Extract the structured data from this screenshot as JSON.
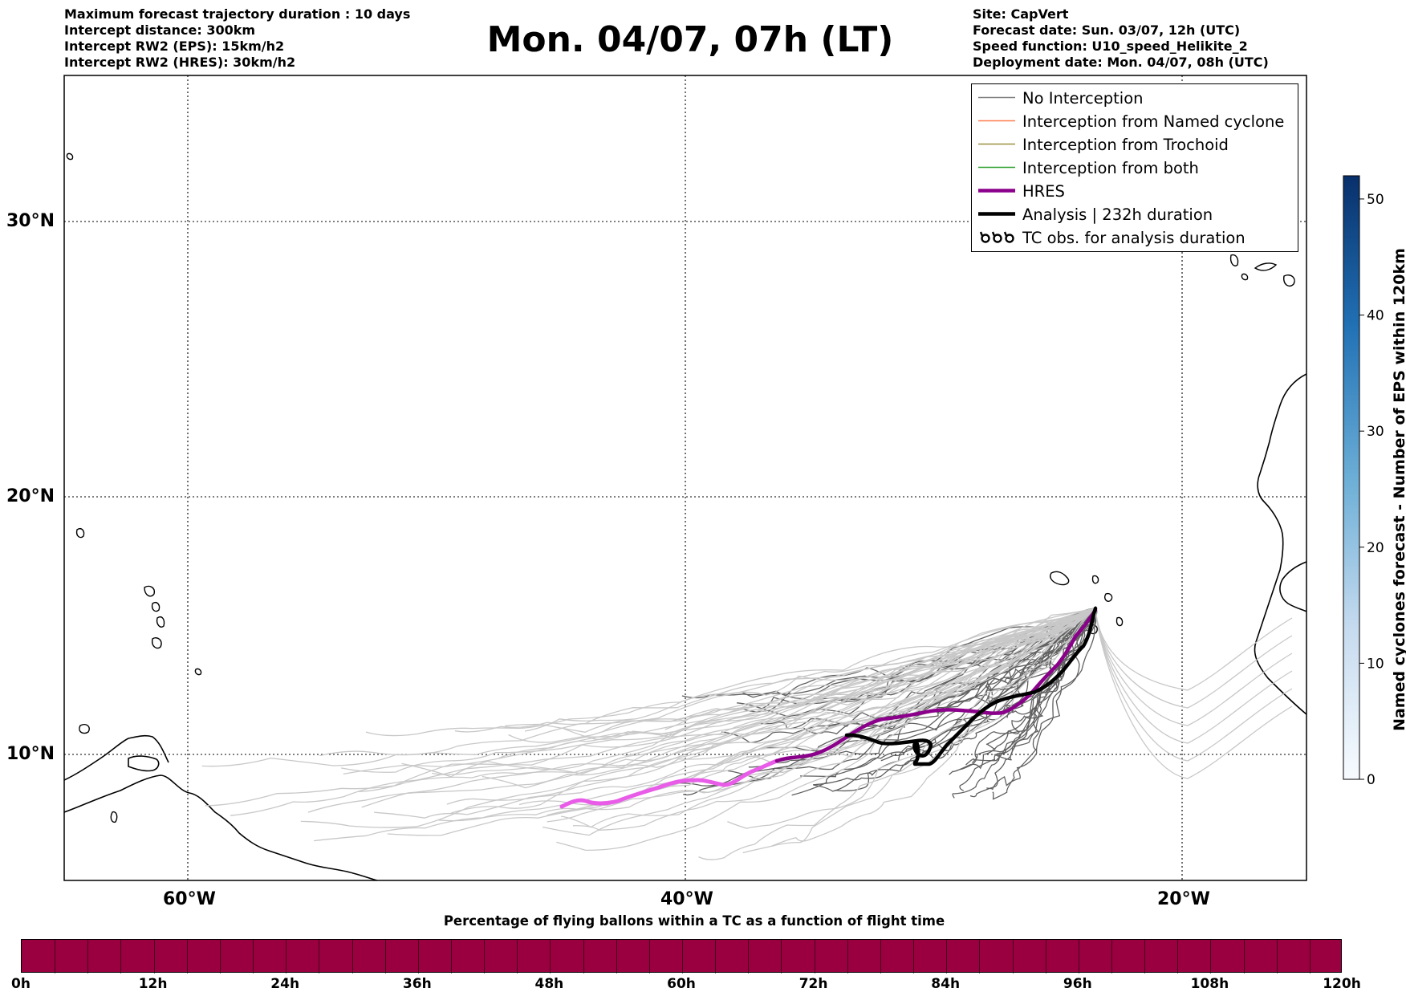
{
  "header": {
    "title": "Mon. 04/07, 07h (LT)",
    "left_lines": [
      "Maximum forecast trajectory duration : 10 days",
      "Intercept distance: 300km",
      "Intercept RW2 (EPS):  15km/h2",
      "Intercept RW2 (HRES): 30km/h2"
    ],
    "right_lines": [
      "Site: CapVert",
      "Forecast date: Sun. 03/07, 12h (UTC)",
      "Speed function: U10_speed_Helikite_2",
      "Deployment date: Mon. 04/07, 08h (UTC)"
    ]
  },
  "map": {
    "lat_labels": [
      "30°N",
      "20°N",
      "10°N"
    ],
    "lon_labels": [
      "60°W",
      "40°W",
      "20°W"
    ],
    "gridlines": "dotted"
  },
  "legend": {
    "items": [
      {
        "label": "No Interception",
        "color": "#808080",
        "style": "thin-line"
      },
      {
        "label": "Interception from Named cyclone",
        "color": "#ff7f50",
        "style": "thin-line"
      },
      {
        "label": "Interception from Trochoid",
        "color": "#9b9040",
        "style": "thin-line"
      },
      {
        "label": "Interception from both",
        "color": "#2ca02c",
        "style": "thin-line"
      },
      {
        "label": "HRES",
        "color": "#8b008b",
        "style": "thick-line"
      },
      {
        "label": "Analysis | 232h duration",
        "color": "#000000",
        "style": "thick-line"
      },
      {
        "label": "TC obs. for analysis duration",
        "color": "#000000",
        "style": "cyclone-symbols"
      }
    ]
  },
  "colorbar_right": {
    "label": "Named cyclones forecast - Number of EPS within 120km",
    "ticks": [
      "0",
      "10",
      "20",
      "30",
      "40",
      "50"
    ],
    "min": 0,
    "max": 52,
    "colormap": "Blues"
  },
  "colorbar_bottom": {
    "title": "Percentage of flying ballons within a TC as a function of flight time",
    "ticks": [
      "0h",
      "12h",
      "24h",
      "36h",
      "48h",
      "60h",
      "72h",
      "84h",
      "96h",
      "108h",
      "120h"
    ],
    "fill_color": "#9a003f"
  },
  "colors": {
    "eps_dark": "#606060",
    "eps_light": "#c8c8c8",
    "hres_early": "#e85ce8",
    "hres_late": "#8b008b",
    "analysis": "#000000"
  }
}
